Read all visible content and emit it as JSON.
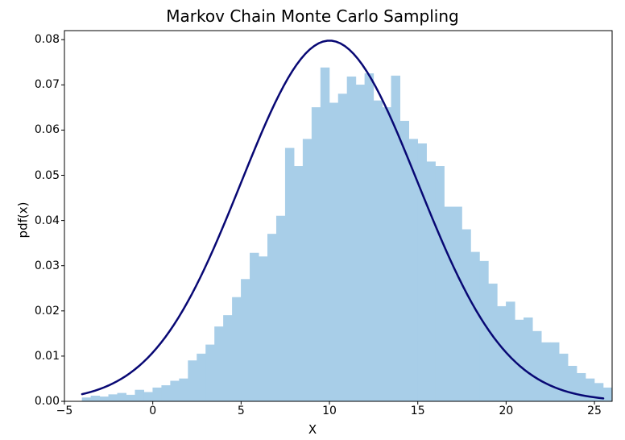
{
  "chart": {
    "type": "histogram+line",
    "title": "Markov Chain Monte Carlo Sampling",
    "title_fontsize": 20,
    "xlabel": "X",
    "ylabel": "pdf(x)",
    "label_fontsize": 15,
    "tick_fontsize": 14,
    "background_color": "#ffffff",
    "axes_color": "#000000",
    "xlim": [
      -5,
      26
    ],
    "ylim": [
      0,
      0.082
    ],
    "xticks": [
      -5,
      0,
      5,
      10,
      15,
      20,
      25
    ],
    "xtick_labels": [
      "−5",
      "0",
      "5",
      "10",
      "15",
      "20",
      "25"
    ],
    "yticks": [
      0.0,
      0.01,
      0.02,
      0.03,
      0.04,
      0.05,
      0.06,
      0.07,
      0.08
    ],
    "ytick_labels": [
      "0.00",
      "0.01",
      "0.02",
      "0.03",
      "0.04",
      "0.05",
      "0.06",
      "0.07",
      "0.08"
    ],
    "tick_length": 4,
    "histogram": {
      "bar_color": "#a8cee8",
      "bar_edge_color": "#a8cee8",
      "bin_width": 0.5,
      "bin_edges_start": -4.0,
      "heights": [
        0.0008,
        0.0012,
        0.001,
        0.0015,
        0.0018,
        0.0014,
        0.0025,
        0.002,
        0.003,
        0.0035,
        0.0045,
        0.005,
        0.009,
        0.0105,
        0.0125,
        0.0165,
        0.019,
        0.023,
        0.027,
        0.0328,
        0.032,
        0.037,
        0.041,
        0.056,
        0.052,
        0.058,
        0.065,
        0.0738,
        0.066,
        0.068,
        0.0718,
        0.07,
        0.0725,
        0.0665,
        0.065,
        0.072,
        0.062,
        0.058,
        0.057,
        0.053,
        0.052,
        0.043,
        0.043,
        0.038,
        0.033,
        0.031,
        0.026,
        0.021,
        0.022,
        0.018,
        0.0185,
        0.0155,
        0.013,
        0.013,
        0.0105,
        0.0078,
        0.0062,
        0.005,
        0.004,
        0.003
      ]
    },
    "line": {
      "color": "#080874",
      "width": 2.5,
      "mu": 10,
      "sigma": 5,
      "x_start": -4.0,
      "x_end": 25.5,
      "n_points": 120
    }
  }
}
